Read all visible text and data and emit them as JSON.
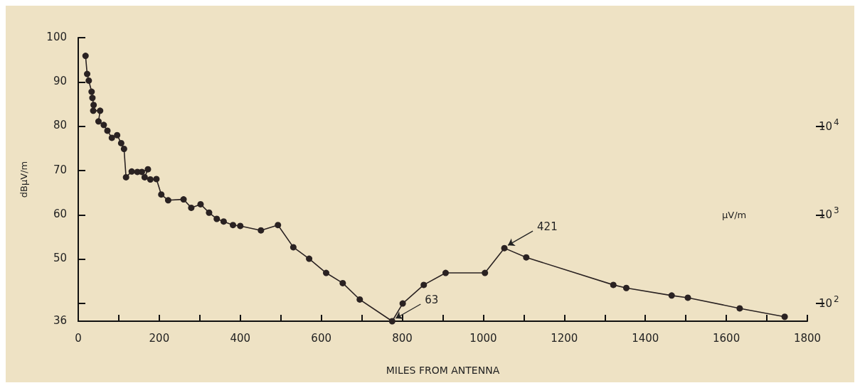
{
  "chart_data": {
    "type": "line",
    "xlabel": "MILES FROM ANTENNA",
    "ylabel": "dBμV/m",
    "y2label": "μV/m",
    "x": [
      18,
      22,
      26,
      33,
      35,
      38,
      37,
      54,
      50,
      63,
      72,
      83,
      96,
      106,
      113,
      118,
      132,
      146,
      157,
      172,
      164,
      178,
      193,
      205,
      222,
      260,
      279,
      302,
      323,
      342,
      359,
      382,
      400,
      451,
      493,
      531,
      570,
      612,
      653,
      695,
      775,
      801,
      853,
      907,
      1004,
      1052,
      1106,
      1321,
      1353,
      1465,
      1505,
      1633,
      1744
    ],
    "series": [
      {
        "color": "#2a2222",
        "values": [
          95.9,
          91.8,
          90.3,
          87.8,
          86.4,
          84.8,
          83.5,
          83.5,
          81.1,
          80.3,
          79.0,
          77.4,
          78.0,
          76.2,
          74.9,
          68.5,
          69.8,
          69.7,
          69.7,
          70.3,
          68.5,
          68.0,
          68.1,
          64.6,
          63.3,
          63.5,
          61.6,
          62.4,
          60.5,
          59.1,
          58.5,
          57.7,
          57.5,
          56.5,
          57.7,
          52.7,
          50.1,
          46.9,
          44.6,
          40.9,
          36,
          40.0,
          44.2,
          46.9,
          46.9,
          52.5,
          50.4,
          44.2,
          43.5,
          41.8,
          41.3,
          38.9,
          37.0
        ]
      }
    ],
    "xlim": [
      0,
      1800
    ],
    "xticks": [
      0,
      {
        "value": 100,
        "label": null
      },
      200,
      {
        "value": 300,
        "label": null
      },
      400,
      {
        "value": 500,
        "label": null
      },
      600,
      {
        "value": 700,
        "label": null
      },
      800,
      {
        "value": 900,
        "label": null
      },
      1000,
      {
        "value": 1100,
        "label": null
      },
      1200,
      {
        "value": 1300,
        "label": null
      },
      1400,
      {
        "value": 1500,
        "label": null
      },
      1600,
      {
        "value": 1700,
        "label": null
      },
      1800
    ],
    "ylim": [
      36,
      100
    ],
    "yticks": [
      36,
      {
        "value": 40,
        "label": null
      },
      50,
      60,
      70,
      80,
      90,
      100
    ],
    "y2lim": [
      63.1,
      100000
    ],
    "y2ticks": [
      {
        "value": 100,
        "label": "10$^{2}$"
      },
      {
        "value": 1000,
        "label": "10$^{3}$"
      },
      {
        "value": 10000,
        "label": "10$^{4}$"
      }
    ],
    "log": "y2",
    "annotations": [
      {
        "text": "63",
        "x": 775,
        "y": 36
      },
      {
        "text": "421",
        "x": 1052,
        "y": 52.5
      }
    ],
    "marker": "circle",
    "line_style": "solid",
    "grid": false
  }
}
